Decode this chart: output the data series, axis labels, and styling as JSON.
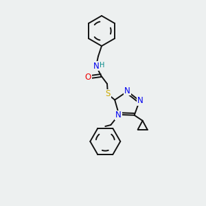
{
  "bg_color": "#edf0f0",
  "atom_colors": {
    "N": "#0000ee",
    "O": "#ee0000",
    "S": "#ccaa00",
    "H": "#008888",
    "C": "#111111"
  },
  "bond_color": "#111111",
  "bond_width": 1.4,
  "font_size_atom": 8.5,
  "font_size_small": 7.0
}
